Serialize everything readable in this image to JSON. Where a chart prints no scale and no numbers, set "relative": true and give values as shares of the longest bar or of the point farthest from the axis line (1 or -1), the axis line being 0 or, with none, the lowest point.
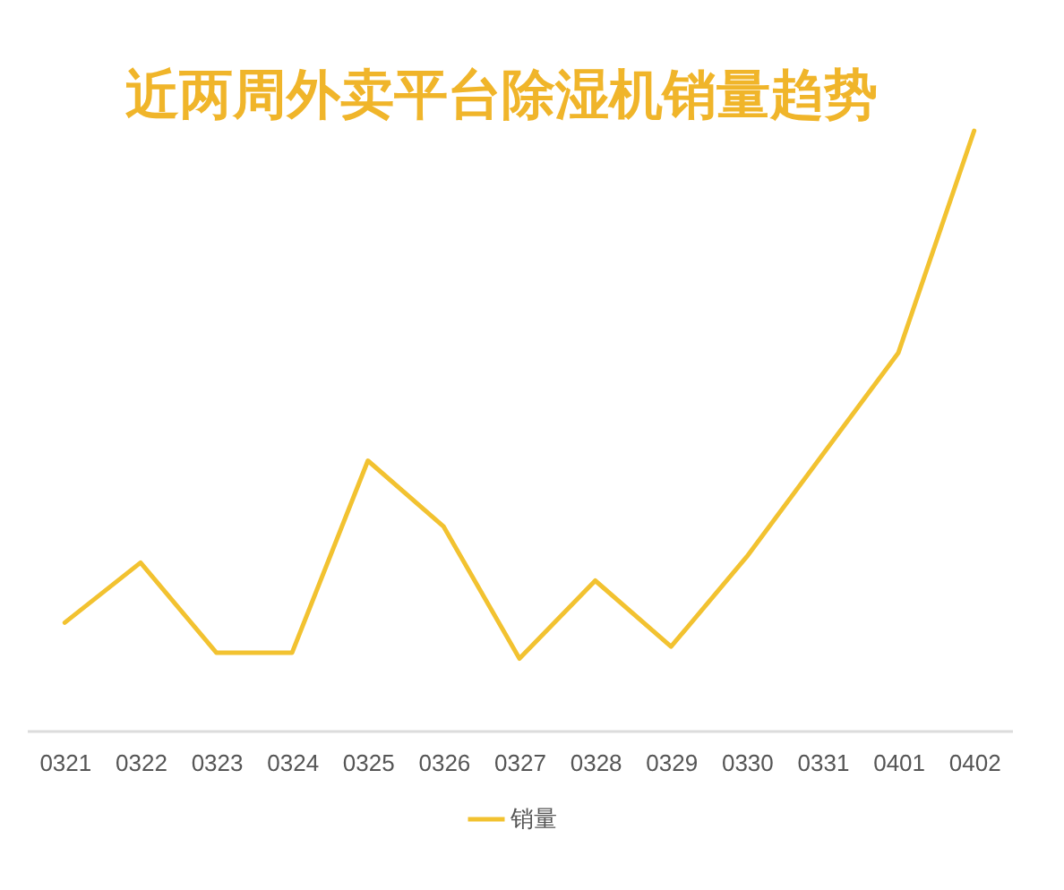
{
  "chart_data": {
    "type": "line",
    "title": "近两周外卖平台除湿机销量趋势",
    "categories": [
      "0321",
      "0322",
      "0323",
      "0324",
      "0325",
      "0326",
      "0327",
      "0328",
      "0329",
      "0330",
      "0331",
      "0401",
      "0402"
    ],
    "relative": true,
    "series": [
      {
        "name": "销量",
        "color": "#f2c230",
        "values": [
          0.18,
          0.28,
          0.13,
          0.13,
          0.45,
          0.34,
          0.12,
          0.25,
          0.14,
          0.29,
          0.46,
          0.63,
          1
        ]
      }
    ],
    "legend": "bottom"
  }
}
